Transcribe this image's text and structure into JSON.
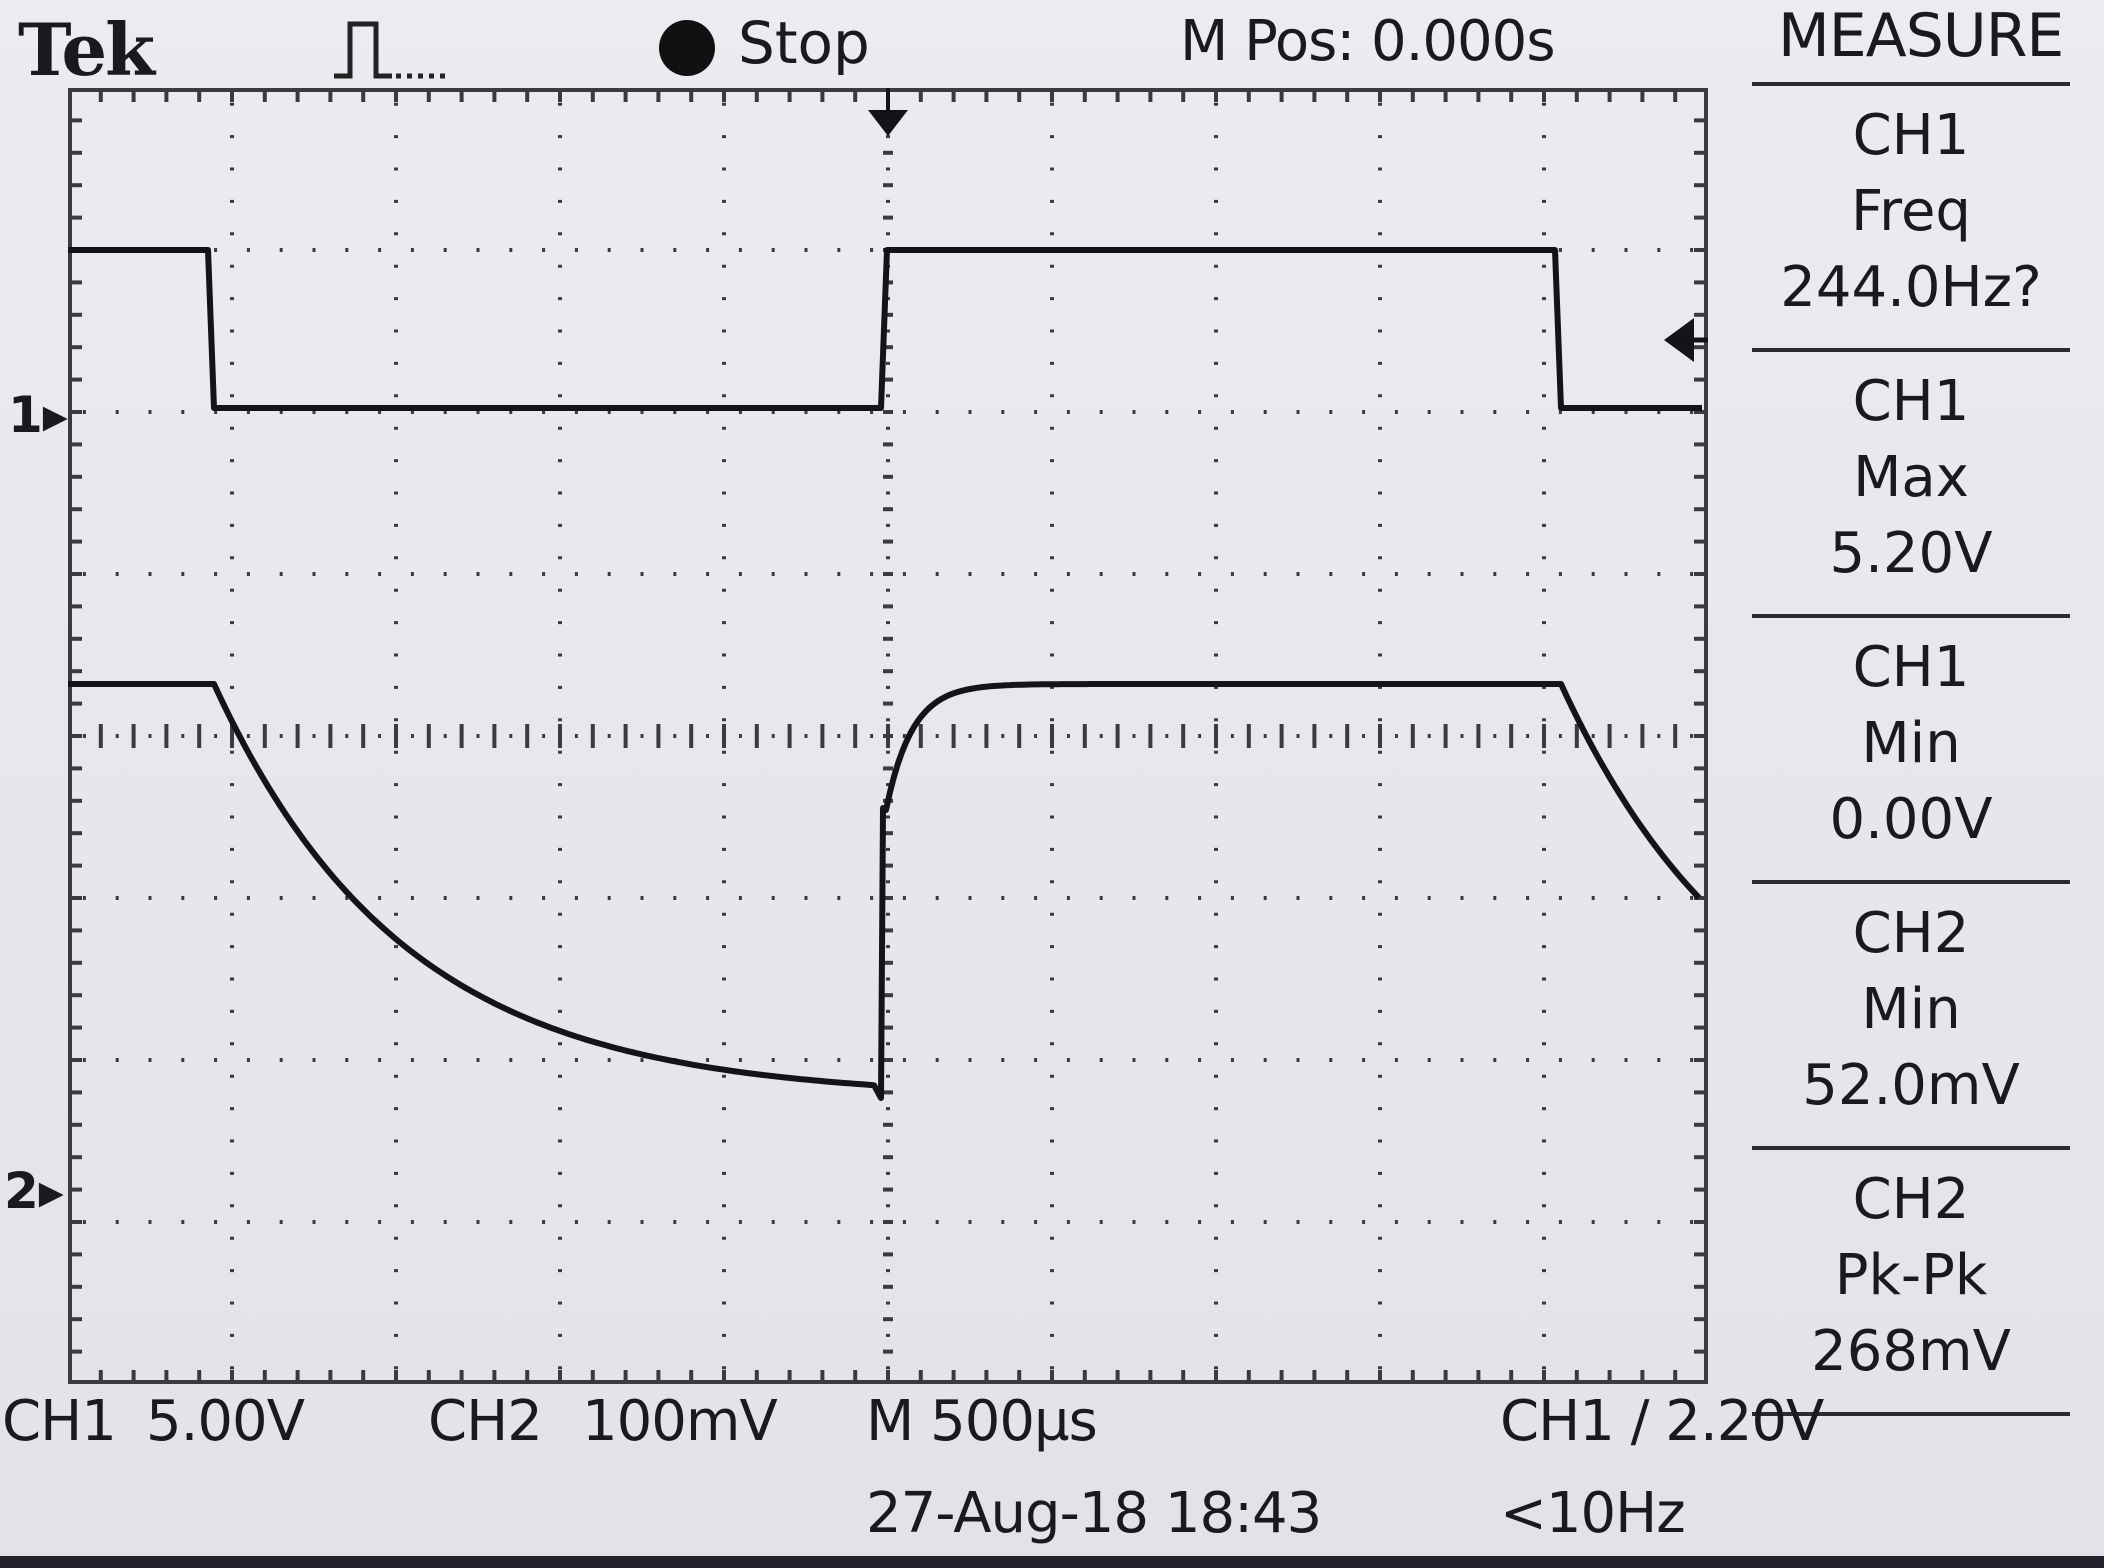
{
  "header": {
    "brand": "Tek",
    "trigger_icon": "pulse-trigger-icon",
    "status": "Stop",
    "status_icon": "stop-dot-icon",
    "m_pos": "M Pos: 0.000s"
  },
  "channel_markers": {
    "ch1": "1",
    "ch2": "2"
  },
  "measure_menu": {
    "title": "MEASURE",
    "items": [
      {
        "source": "CH1",
        "type": "Freq",
        "value": "244.0Hz?"
      },
      {
        "source": "CH1",
        "type": "Max",
        "value": "5.20V"
      },
      {
        "source": "CH1",
        "type": "Min",
        "value": "0.00V"
      },
      {
        "source": "CH2",
        "type": "Min",
        "value": "52.0mV"
      },
      {
        "source": "CH2",
        "type": "Pk-Pk",
        "value": "268mV"
      }
    ]
  },
  "footer": {
    "ch1_label": "CH1",
    "ch1_scale": "5.00V",
    "ch2_label": "CH2",
    "ch2_scale": "100mV",
    "timebase": "M 500µs",
    "trigger": "CH1 ∕ 2.20V",
    "date_time": "27-Aug-18 18:43",
    "trigger_freq": "<10Hz"
  },
  "colors": {
    "trace": "#141418",
    "grid": "#3a3a42",
    "background": "#e9e8ee"
  }
}
